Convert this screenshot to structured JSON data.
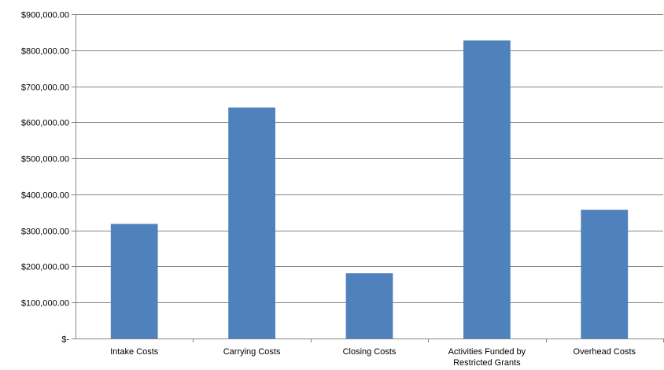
{
  "chart_data": {
    "type": "bar",
    "categories": [
      "Intake Costs",
      "Carrying Costs",
      "Closing Costs",
      "Activities Funded by Restricted Grants",
      "Overhead Costs"
    ],
    "category_lines": [
      [
        "Intake Costs"
      ],
      [
        "Carrying Costs"
      ],
      [
        "Closing Costs"
      ],
      [
        "Activities Funded by",
        "Restricted Grants"
      ],
      [
        "Overhead Costs"
      ]
    ],
    "values": [
      318000,
      641000,
      181000,
      827000,
      357000
    ],
    "ylim": [
      0,
      900000
    ],
    "yticks": [
      0,
      100000,
      200000,
      300000,
      400000,
      500000,
      600000,
      700000,
      800000,
      900000
    ],
    "ytick_labels": [
      "$-",
      "$100,000.00",
      "$200,000.00",
      "$300,000.00",
      "$400,000.00",
      "$500,000.00",
      "$600,000.00",
      "$700,000.00",
      "$800,000.00",
      "$900,000.00"
    ],
    "grid": true,
    "bar_color": "#4f81bd",
    "gridline_color": "#868686",
    "title": "",
    "xlabel": "",
    "ylabel": ""
  }
}
